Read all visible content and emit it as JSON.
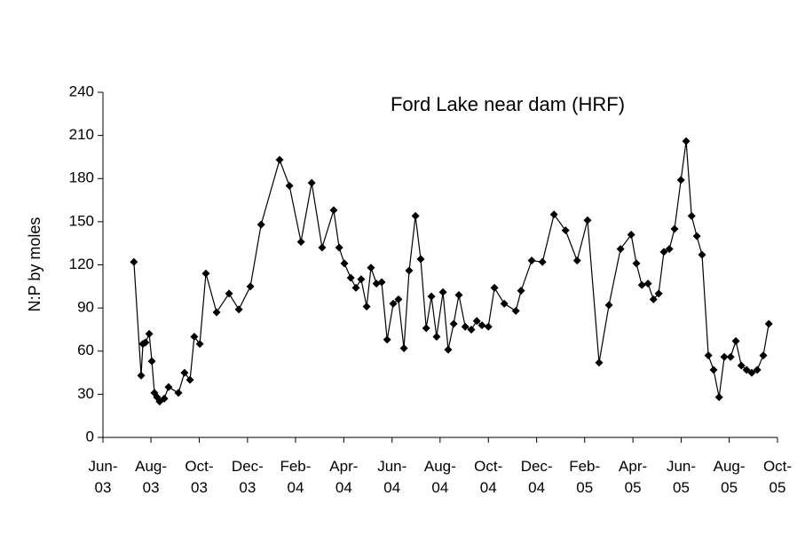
{
  "chart_data": {
    "type": "line",
    "title": "Ford Lake near dam (HRF)",
    "y_label": "N:P by moles",
    "color": "#000000",
    "marker": "diamond",
    "x": [
      2003.524,
      2003.549,
      2003.555,
      2003.564,
      2003.577,
      2003.586,
      2003.595,
      2003.604,
      2003.613,
      2003.629,
      2003.644,
      2003.678,
      2003.699,
      2003.718,
      2003.733,
      2003.752,
      2003.773,
      2003.81,
      2003.853,
      2003.887,
      2003.927,
      2003.964,
      2004.028,
      2004.062,
      2004.102,
      2004.139,
      2004.175,
      2004.215,
      2004.234,
      2004.252,
      2004.274,
      2004.292,
      2004.31,
      2004.329,
      2004.344,
      2004.363,
      2004.381,
      2004.4,
      2004.421,
      2004.439,
      2004.458,
      2004.476,
      2004.498,
      2004.516,
      2004.535,
      2004.553,
      2004.571,
      2004.593,
      2004.611,
      2004.63,
      2004.648,
      2004.67,
      2004.691,
      2004.71,
      2004.728,
      2004.75,
      2004.771,
      2004.805,
      2004.845,
      2004.863,
      2004.9,
      2004.937,
      2004.977,
      2005.017,
      2005.057,
      2005.093,
      2005.133,
      2005.167,
      2005.207,
      2005.244,
      2005.262,
      2005.281,
      2005.302,
      2005.321,
      2005.339,
      2005.357,
      2005.376,
      2005.394,
      2005.416,
      2005.434,
      2005.453,
      2005.471,
      2005.489,
      2005.511,
      2005.529,
      2005.548,
      2005.566,
      2005.588,
      2005.606,
      2005.625,
      2005.643,
      2005.661,
      2005.68,
      2005.701,
      2005.72
    ],
    "values": [
      122,
      43,
      65,
      66,
      72,
      53,
      31,
      28,
      25,
      27,
      35,
      31,
      45,
      40,
      70,
      65,
      114,
      87,
      100,
      89,
      105,
      148,
      193,
      175,
      136,
      177,
      132,
      158,
      132,
      121,
      111,
      104,
      110,
      91,
      118,
      107,
      108,
      68,
      93,
      96,
      62,
      116,
      154,
      124,
      76,
      98,
      70,
      101,
      61,
      79,
      99,
      77,
      75,
      81,
      78,
      77,
      104,
      93,
      88,
      102,
      123,
      122,
      155,
      144,
      123,
      151,
      52,
      92,
      131,
      141,
      121,
      106,
      107,
      96,
      100,
      129,
      131,
      145,
      179,
      206,
      154,
      140,
      127,
      57,
      47,
      28,
      56,
      56,
      67,
      50,
      47,
      45,
      47,
      57,
      79
    ],
    "xlim": [
      2003.417,
      2005.75
    ],
    "xticks": [
      {
        "value": 2003.417,
        "label": "Jun-03"
      },
      {
        "value": 2003.583,
        "label": "Aug-03"
      },
      {
        "value": 2003.75,
        "label": "Oct-03"
      },
      {
        "value": 2003.917,
        "label": "Dec-03"
      },
      {
        "value": 2004.083,
        "label": "Feb-04"
      },
      {
        "value": 2004.25,
        "label": "Apr-04"
      },
      {
        "value": 2004.417,
        "label": "Jun-04"
      },
      {
        "value": 2004.583,
        "label": "Aug-04"
      },
      {
        "value": 2004.75,
        "label": "Oct-04"
      },
      {
        "value": 2004.917,
        "label": "Dec-04"
      },
      {
        "value": 2005.083,
        "label": "Feb-05"
      },
      {
        "value": 2005.25,
        "label": "Apr-05"
      },
      {
        "value": 2005.417,
        "label": "Jun-05"
      },
      {
        "value": 2005.583,
        "label": "Aug-05"
      },
      {
        "value": 2005.75,
        "label": "Oct-05"
      }
    ],
    "ylim": [
      0,
      240
    ],
    "yticks": [
      0,
      30,
      60,
      90,
      120,
      150,
      180,
      210,
      240
    ],
    "grid": false
  }
}
